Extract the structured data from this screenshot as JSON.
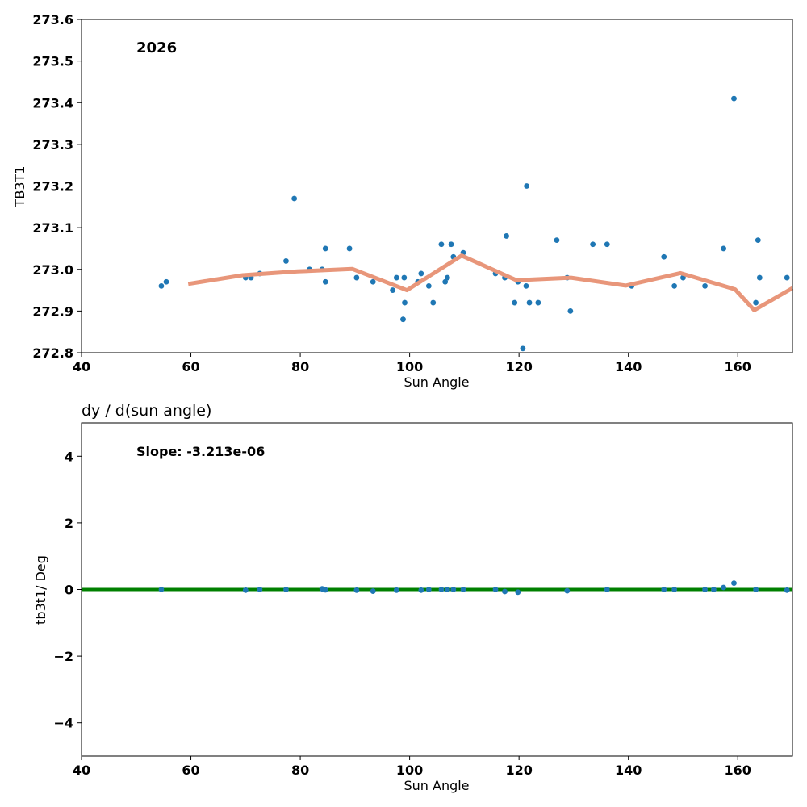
{
  "chart_data": [
    {
      "type": "scatter",
      "title": "",
      "annotation": "2026",
      "xlabel": "Sun Angle",
      "ylabel": "TB3T1",
      "xlim": [
        40,
        170
      ],
      "ylim": [
        272.8,
        273.6
      ],
      "xticks": [
        40,
        60,
        80,
        100,
        120,
        140,
        160
      ],
      "yticks": [
        272.8,
        272.9,
        273.0,
        273.1,
        273.2,
        273.3,
        273.4,
        273.5,
        273.6
      ],
      "grid": false,
      "colors": {
        "points": "#1f77b4",
        "trend": "#e8967a"
      },
      "points": [
        [
          54.6,
          272.96
        ],
        [
          55.5,
          272.97
        ],
        [
          70.0,
          272.98
        ],
        [
          71.0,
          272.98
        ],
        [
          72.6,
          272.99
        ],
        [
          77.4,
          273.02
        ],
        [
          78.9,
          273.17
        ],
        [
          81.7,
          273.0
        ],
        [
          84.0,
          273.0
        ],
        [
          84.6,
          273.05
        ],
        [
          84.6,
          272.97
        ],
        [
          89.0,
          273.05
        ],
        [
          90.3,
          272.98
        ],
        [
          93.3,
          272.97
        ],
        [
          96.9,
          272.95
        ],
        [
          97.6,
          272.98
        ],
        [
          98.8,
          272.88
        ],
        [
          99.0,
          272.98
        ],
        [
          99.1,
          272.92
        ],
        [
          101.5,
          272.97
        ],
        [
          102.1,
          272.99
        ],
        [
          103.5,
          272.96
        ],
        [
          104.3,
          272.92
        ],
        [
          105.8,
          273.06
        ],
        [
          106.5,
          272.97
        ],
        [
          106.9,
          272.98
        ],
        [
          107.6,
          273.06
        ],
        [
          108.0,
          273.03
        ],
        [
          109.8,
          273.04
        ],
        [
          115.7,
          272.99
        ],
        [
          117.4,
          272.98
        ],
        [
          117.7,
          273.08
        ],
        [
          119.2,
          272.92
        ],
        [
          119.8,
          272.97
        ],
        [
          120.7,
          272.81
        ],
        [
          121.3,
          272.96
        ],
        [
          121.4,
          273.2
        ],
        [
          121.9,
          272.92
        ],
        [
          123.5,
          272.92
        ],
        [
          126.9,
          273.07
        ],
        [
          128.8,
          272.98
        ],
        [
          129.4,
          272.9
        ],
        [
          133.5,
          273.06
        ],
        [
          136.1,
          273.06
        ],
        [
          140.6,
          272.96
        ],
        [
          146.5,
          273.03
        ],
        [
          148.4,
          272.96
        ],
        [
          150.0,
          272.98
        ],
        [
          154.0,
          272.96
        ],
        [
          157.4,
          273.05
        ],
        [
          159.3,
          273.41
        ],
        [
          163.3,
          272.92
        ],
        [
          163.7,
          273.07
        ],
        [
          164.0,
          272.98
        ],
        [
          169.0,
          272.98
        ]
      ],
      "trend": [
        [
          59.5,
          272.965
        ],
        [
          69.5,
          272.986
        ],
        [
          79.5,
          272.995
        ],
        [
          89.5,
          273.001
        ],
        [
          99.5,
          272.95
        ],
        [
          109.5,
          273.033
        ],
        [
          119.5,
          272.974
        ],
        [
          129.5,
          272.98
        ],
        [
          139.5,
          272.961
        ],
        [
          149.5,
          272.991
        ],
        [
          159.5,
          272.952
        ],
        [
          163.0,
          272.902
        ],
        [
          170.0,
          272.955
        ]
      ]
    },
    {
      "type": "scatter",
      "title": "dy / d(sun angle)",
      "annotation": "Slope: -3.213e-06",
      "xlabel": "Sun Angle",
      "ylabel": "tb3t1/ Deg",
      "xlim": [
        40,
        170
      ],
      "ylim": [
        -5,
        5
      ],
      "xticks": [
        40,
        60,
        80,
        100,
        120,
        140,
        160
      ],
      "yticks": [
        -4,
        -2,
        0,
        2,
        4
      ],
      "ytick_labels": [
        "−4",
        "−2",
        "0",
        "2",
        "4"
      ],
      "grid": false,
      "colors": {
        "points": "#1f77b4",
        "fit": "#008000"
      },
      "fit_line": {
        "slope": -3.213e-06,
        "intercept": 0.0
      },
      "points": [
        [
          54.6,
          0.0
        ],
        [
          70.0,
          -0.02
        ],
        [
          72.6,
          0.0
        ],
        [
          77.4,
          0.0
        ],
        [
          84.0,
          0.02
        ],
        [
          84.6,
          -0.01
        ],
        [
          90.3,
          -0.02
        ],
        [
          93.3,
          -0.05
        ],
        [
          97.6,
          -0.02
        ],
        [
          102.1,
          -0.02
        ],
        [
          103.5,
          0.0
        ],
        [
          105.8,
          0.0
        ],
        [
          106.9,
          0.0
        ],
        [
          108.0,
          0.0
        ],
        [
          109.8,
          0.0
        ],
        [
          115.7,
          0.0
        ],
        [
          117.4,
          -0.06
        ],
        [
          119.8,
          -0.08
        ],
        [
          128.8,
          -0.04
        ],
        [
          136.1,
          0.0
        ],
        [
          146.5,
          0.0
        ],
        [
          148.4,
          0.0
        ],
        [
          154.0,
          0.0
        ],
        [
          155.6,
          0.0
        ],
        [
          157.4,
          0.06
        ],
        [
          159.3,
          0.19
        ],
        [
          163.3,
          0.0
        ],
        [
          169.0,
          -0.02
        ]
      ]
    }
  ]
}
